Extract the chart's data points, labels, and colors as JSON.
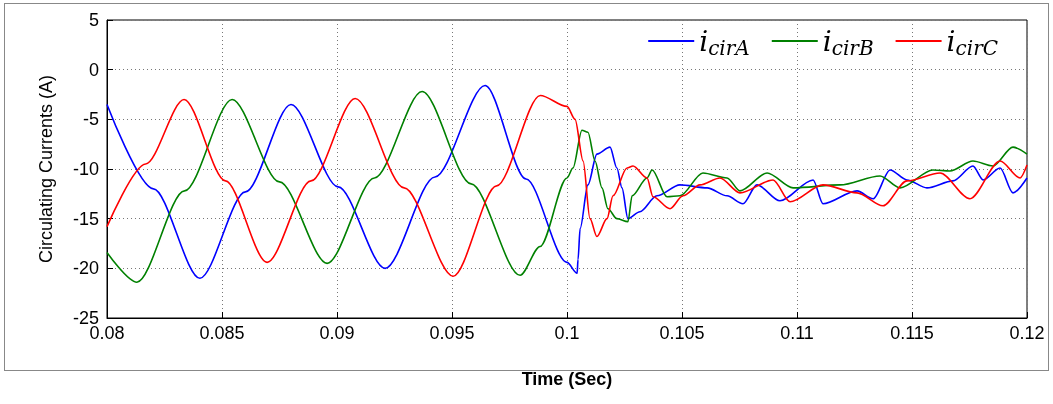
{
  "chart_data": {
    "type": "line",
    "xlabel": "Time (Sec)",
    "ylabel": "Circulating Currents (A)",
    "xlim": [
      0.08,
      0.12
    ],
    "xticks": [
      0.08,
      0.085,
      0.09,
      0.095,
      0.1,
      0.105,
      0.11,
      0.115,
      0.12
    ],
    "ylim": [
      -25,
      5
    ],
    "yticks": [
      -25,
      -20,
      -15,
      -10,
      -5,
      0,
      5
    ],
    "grid": true,
    "legend": "top right",
    "line_style": "solid",
    "marker": "none",
    "series": [
      {
        "name": "i$_{cirA}$",
        "color": "#0000ff",
        "x": [
          0.08,
          0.08202,
          0.08404,
          0.08602,
          0.088,
          0.09005,
          0.09209,
          0.09426,
          0.09644,
          0.09822,
          0.1,
          0.10044,
          0.10048,
          0.10057,
          0.10091,
          0.1013,
          0.10187,
          0.10217,
          0.10239,
          0.10265,
          0.10317,
          0.10391,
          0.10491,
          0.10609,
          0.10696,
          0.10765,
          0.10826,
          0.10926,
          0.1107,
          0.11113,
          0.11261,
          0.11331,
          0.11405,
          0.11478,
          0.11565,
          0.11678,
          0.11765,
          0.11809,
          0.11883,
          0.11939,
          0.12
        ],
        "values": [
          -3.5,
          -12,
          -21,
          -12.3,
          -3.5,
          -11.8,
          -20,
          -10.8,
          -1.6,
          -11,
          -19.4,
          -20.5,
          -19.1,
          -16,
          -11.6,
          -8.5,
          -7.8,
          -9.9,
          -11.9,
          -15,
          -14.3,
          -12.7,
          -11.6,
          -11.9,
          -12.7,
          -13.5,
          -11.6,
          -13.2,
          -11.1,
          -13.5,
          -12.2,
          -13,
          -10.1,
          -11.1,
          -11.9,
          -11.2,
          -9.7,
          -11.1,
          -9.9,
          -12.4,
          -10.9
        ]
      },
      {
        "name": "i$_{cirB}$",
        "color": "#008000",
        "x": [
          0.08,
          0.0813,
          0.08337,
          0.08544,
          0.0875,
          0.08957,
          0.09163,
          0.0937,
          0.09583,
          0.09796,
          0.09883,
          0.1,
          0.10026,
          0.10065,
          0.10091,
          0.10122,
          0.10152,
          0.10178,
          0.10217,
          0.10265,
          0.10283,
          0.10348,
          0.1037,
          0.10435,
          0.10491,
          0.10591,
          0.10696,
          0.10752,
          0.1087,
          0.10983,
          0.11187,
          0.11361,
          0.11448,
          0.11591,
          0.11665,
          0.11765,
          0.11852,
          0.11939,
          0.12
        ],
        "values": [
          -18.4,
          -21.4,
          -12.2,
          -3,
          -11.3,
          -19.5,
          -10.9,
          -2.2,
          -11.5,
          -20.7,
          -17.8,
          -10.9,
          -9.9,
          -6.1,
          -6.3,
          -9.2,
          -11.9,
          -14,
          -15,
          -15.3,
          -12.7,
          -10.9,
          -10.1,
          -12.8,
          -12.7,
          -10.4,
          -10.9,
          -12.2,
          -10.4,
          -11.9,
          -11.6,
          -10.7,
          -11.9,
          -10.1,
          -10.2,
          -9.2,
          -9.7,
          -7.8,
          -8.5
        ]
      },
      {
        "name": "i$_{cirC}$",
        "color": "#ff0000",
        "x": [
          0.08,
          0.08168,
          0.08335,
          0.08515,
          0.08696,
          0.08887,
          0.09079,
          0.09292,
          0.09505,
          0.09694,
          0.09884,
          0.1,
          0.10035,
          0.1007,
          0.101,
          0.1013,
          0.10174,
          0.102,
          0.10261,
          0.10287,
          0.10348,
          0.10374,
          0.10448,
          0.10504,
          0.10578,
          0.10665,
          0.10752,
          0.10896,
          0.1097,
          0.11113,
          0.11261,
          0.11374,
          0.11478,
          0.11622,
          0.11752,
          0.11883,
          0.1197,
          0.12
        ],
        "values": [
          -15.8,
          -9.5,
          -3,
          -11.2,
          -19.4,
          -11.2,
          -2.9,
          -11.9,
          -20.8,
          -11.7,
          -2.6,
          -3.7,
          -5,
          -9.2,
          -15,
          -16.8,
          -15,
          -12.7,
          -9.9,
          -9.7,
          -10.9,
          -12.8,
          -14,
          -12.7,
          -11.6,
          -10.9,
          -12.4,
          -11.1,
          -13.3,
          -11.6,
          -12.4,
          -13.7,
          -11.2,
          -10.4,
          -13,
          -9.2,
          -10.9,
          -9.6
        ]
      }
    ]
  }
}
